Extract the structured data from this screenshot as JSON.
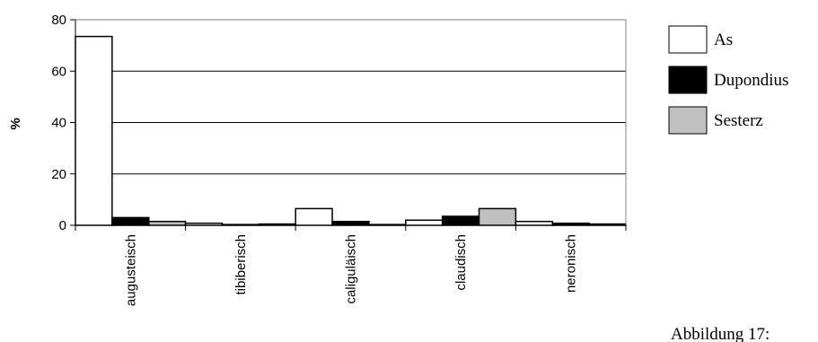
{
  "chart_data": {
    "type": "bar",
    "categories": [
      "augusteisch",
      "tibiberisch",
      "caliguläisch",
      "claudisch",
      "neronisch"
    ],
    "series": [
      {
        "name": "As",
        "values": [
          73.5,
          0.8,
          6.5,
          2.0,
          1.5
        ],
        "color": "#ffffff"
      },
      {
        "name": "Dupondius",
        "values": [
          3.0,
          0.3,
          1.5,
          3.5,
          0.8
        ],
        "color": "#000000"
      },
      {
        "name": "Sesterz",
        "values": [
          1.5,
          0.5,
          0.3,
          6.5,
          0.5
        ],
        "color": "#c0c0c0"
      }
    ],
    "ylabel": "%",
    "ylim": [
      0,
      80
    ],
    "yticks": [
      0,
      20,
      40,
      60,
      80
    ],
    "grid": true,
    "legend_position": "right"
  },
  "caption": "Abbildung 17:"
}
